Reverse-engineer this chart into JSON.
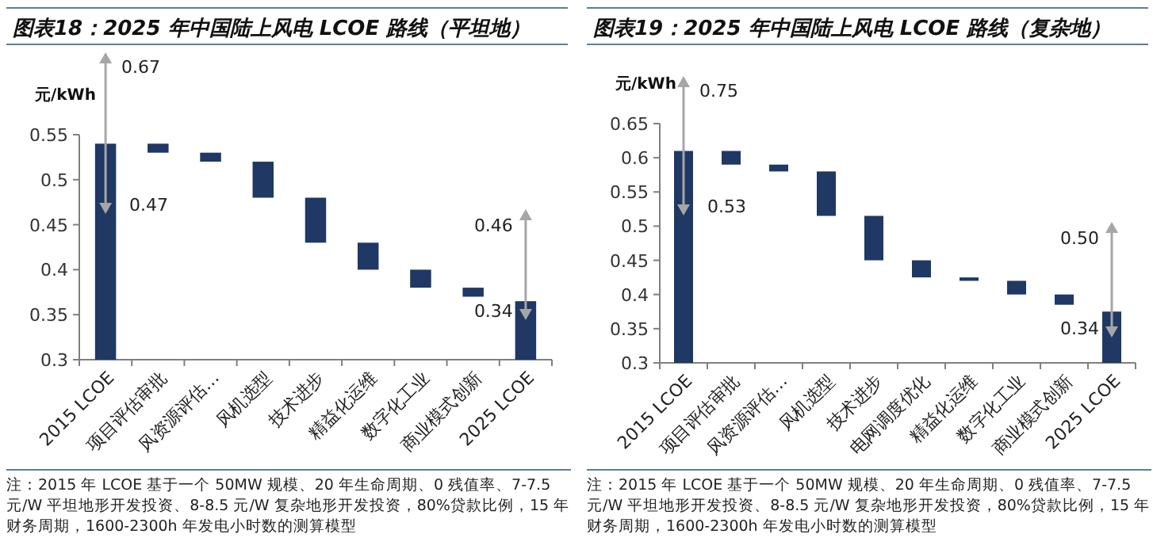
{
  "chart_data": [
    {
      "type": "bar",
      "title": "图表18：2025 年中国陆上风电 LCOE 路线（平坦地）",
      "ylabel": "元/kWh",
      "categories": [
        "2015 LCOE",
        "项目评估审批",
        "风资源评估…",
        "风机选型",
        "技术进步",
        "精益化运维",
        "数字化工业",
        "商业模式创新",
        "2025 LCOE"
      ],
      "base": [
        0.3,
        0.54,
        0.53,
        0.52,
        0.48,
        0.43,
        0.4,
        0.38,
        0.3
      ],
      "values": [
        0.24,
        -0.01,
        -0.01,
        -0.04,
        -0.05,
        -0.03,
        -0.02,
        -0.01,
        0.065
      ],
      "color": "#1f3864",
      "ylim": [
        0.3,
        0.55
      ],
      "yticks": [
        0.3,
        0.35,
        0.4,
        0.45,
        0.5,
        0.55
      ],
      "grid": false,
      "annotations": [
        "0.67",
        "0.47",
        "0.46",
        "0.34",
        "注：2015 年 LCOE 基于一个 50MW 规模、20 年生命周期、0 残值率、7-7.5 元/W 平坦地形开发投资、8-8.5 元/W 复杂地形开发投资，80%贷款比例，15 年财务周期，1600-2300h 年发电小时数的测算模型"
      ]
    },
    {
      "type": "bar",
      "title": "图表19：2025 年中国陆上风电 LCOE 路线（复杂地）",
      "ylabel": "元/kWh",
      "categories": [
        "2015 LCOE",
        "项目评估审批",
        "风资源评估…",
        "风机选型",
        "技术进步",
        "电网调度优化",
        "精益化运维",
        "数字化工业",
        "商业模式创新",
        "2025 LCOE"
      ],
      "base": [
        0.3,
        0.61,
        0.59,
        0.58,
        0.515,
        0.45,
        0.425,
        0.42,
        0.4,
        0.3
      ],
      "values": [
        0.31,
        -0.02,
        -0.01,
        -0.065,
        -0.065,
        -0.025,
        -0.005,
        -0.02,
        -0.015,
        0.075
      ],
      "color": "#1f3864",
      "ylim": [
        0.3,
        0.65
      ],
      "yticks": [
        0.3,
        0.35,
        0.4,
        0.45,
        0.5,
        0.55,
        0.6,
        0.65
      ],
      "grid": false,
      "annotations": [
        "0.75",
        "0.53",
        "0.50",
        "0.34",
        "注：2015 年 LCOE 基于一个 50MW 规模、20 年生命周期、0 残值率、7-7.5 元/W 平坦地形开发投资、8-8.5 元/W 复杂地形开发投资，80%贷款比例，15 年财务周期，1600-2300h 年发电小时数的测算模型"
      ]
    }
  ]
}
